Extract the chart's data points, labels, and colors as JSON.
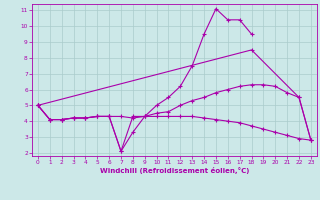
{
  "background_color": "#cce8e8",
  "grid_color": "#aacccc",
  "line_color": "#aa00aa",
  "xlabel": "Windchill (Refroidissement éolien,°C)",
  "ylabel_ticks": [
    2,
    3,
    4,
    5,
    6,
    7,
    8,
    9,
    10,
    11
  ],
  "xlabel_ticks": [
    0,
    1,
    2,
    3,
    4,
    5,
    6,
    7,
    8,
    9,
    10,
    11,
    12,
    13,
    14,
    15,
    16,
    17,
    18,
    19,
    20,
    21,
    22,
    23
  ],
  "xlim": [
    -0.5,
    23.5
  ],
  "ylim": [
    1.8,
    11.4
  ],
  "lines": [
    {
      "x": [
        0,
        1,
        2,
        3,
        4,
        5,
        6,
        7,
        8,
        9,
        10,
        11,
        12,
        13,
        14,
        15,
        16,
        17,
        18
      ],
      "y": [
        5.0,
        4.1,
        4.1,
        4.2,
        4.2,
        4.3,
        4.3,
        2.1,
        4.3,
        4.3,
        5.0,
        5.5,
        6.2,
        7.5,
        9.5,
        11.1,
        10.4,
        10.4,
        9.5
      ]
    },
    {
      "x": [
        0,
        18,
        22,
        23
      ],
      "y": [
        5.0,
        8.5,
        5.5,
        2.8
      ]
    },
    {
      "x": [
        0,
        1,
        2,
        3,
        4,
        5,
        6,
        7,
        8,
        9,
        10,
        11,
        12,
        13,
        14,
        15,
        16,
        17,
        18,
        19,
        20,
        21,
        22,
        23
      ],
      "y": [
        5.0,
        4.1,
        4.1,
        4.2,
        4.2,
        4.3,
        4.3,
        4.3,
        4.2,
        4.3,
        4.5,
        4.6,
        5.0,
        5.3,
        5.5,
        5.8,
        6.0,
        6.2,
        6.3,
        6.3,
        6.2,
        5.8,
        5.5,
        2.8
      ]
    },
    {
      "x": [
        0,
        1,
        2,
        3,
        4,
        5,
        6,
        7,
        8,
        9,
        10,
        11,
        12,
        13,
        14,
        15,
        16,
        17,
        18,
        19,
        20,
        21,
        22,
        23
      ],
      "y": [
        5.0,
        4.1,
        4.1,
        4.2,
        4.2,
        4.3,
        4.3,
        2.1,
        3.3,
        4.3,
        4.3,
        4.3,
        4.3,
        4.3,
        4.2,
        4.1,
        4.0,
        3.9,
        3.7,
        3.5,
        3.3,
        3.1,
        2.9,
        2.8
      ]
    }
  ]
}
